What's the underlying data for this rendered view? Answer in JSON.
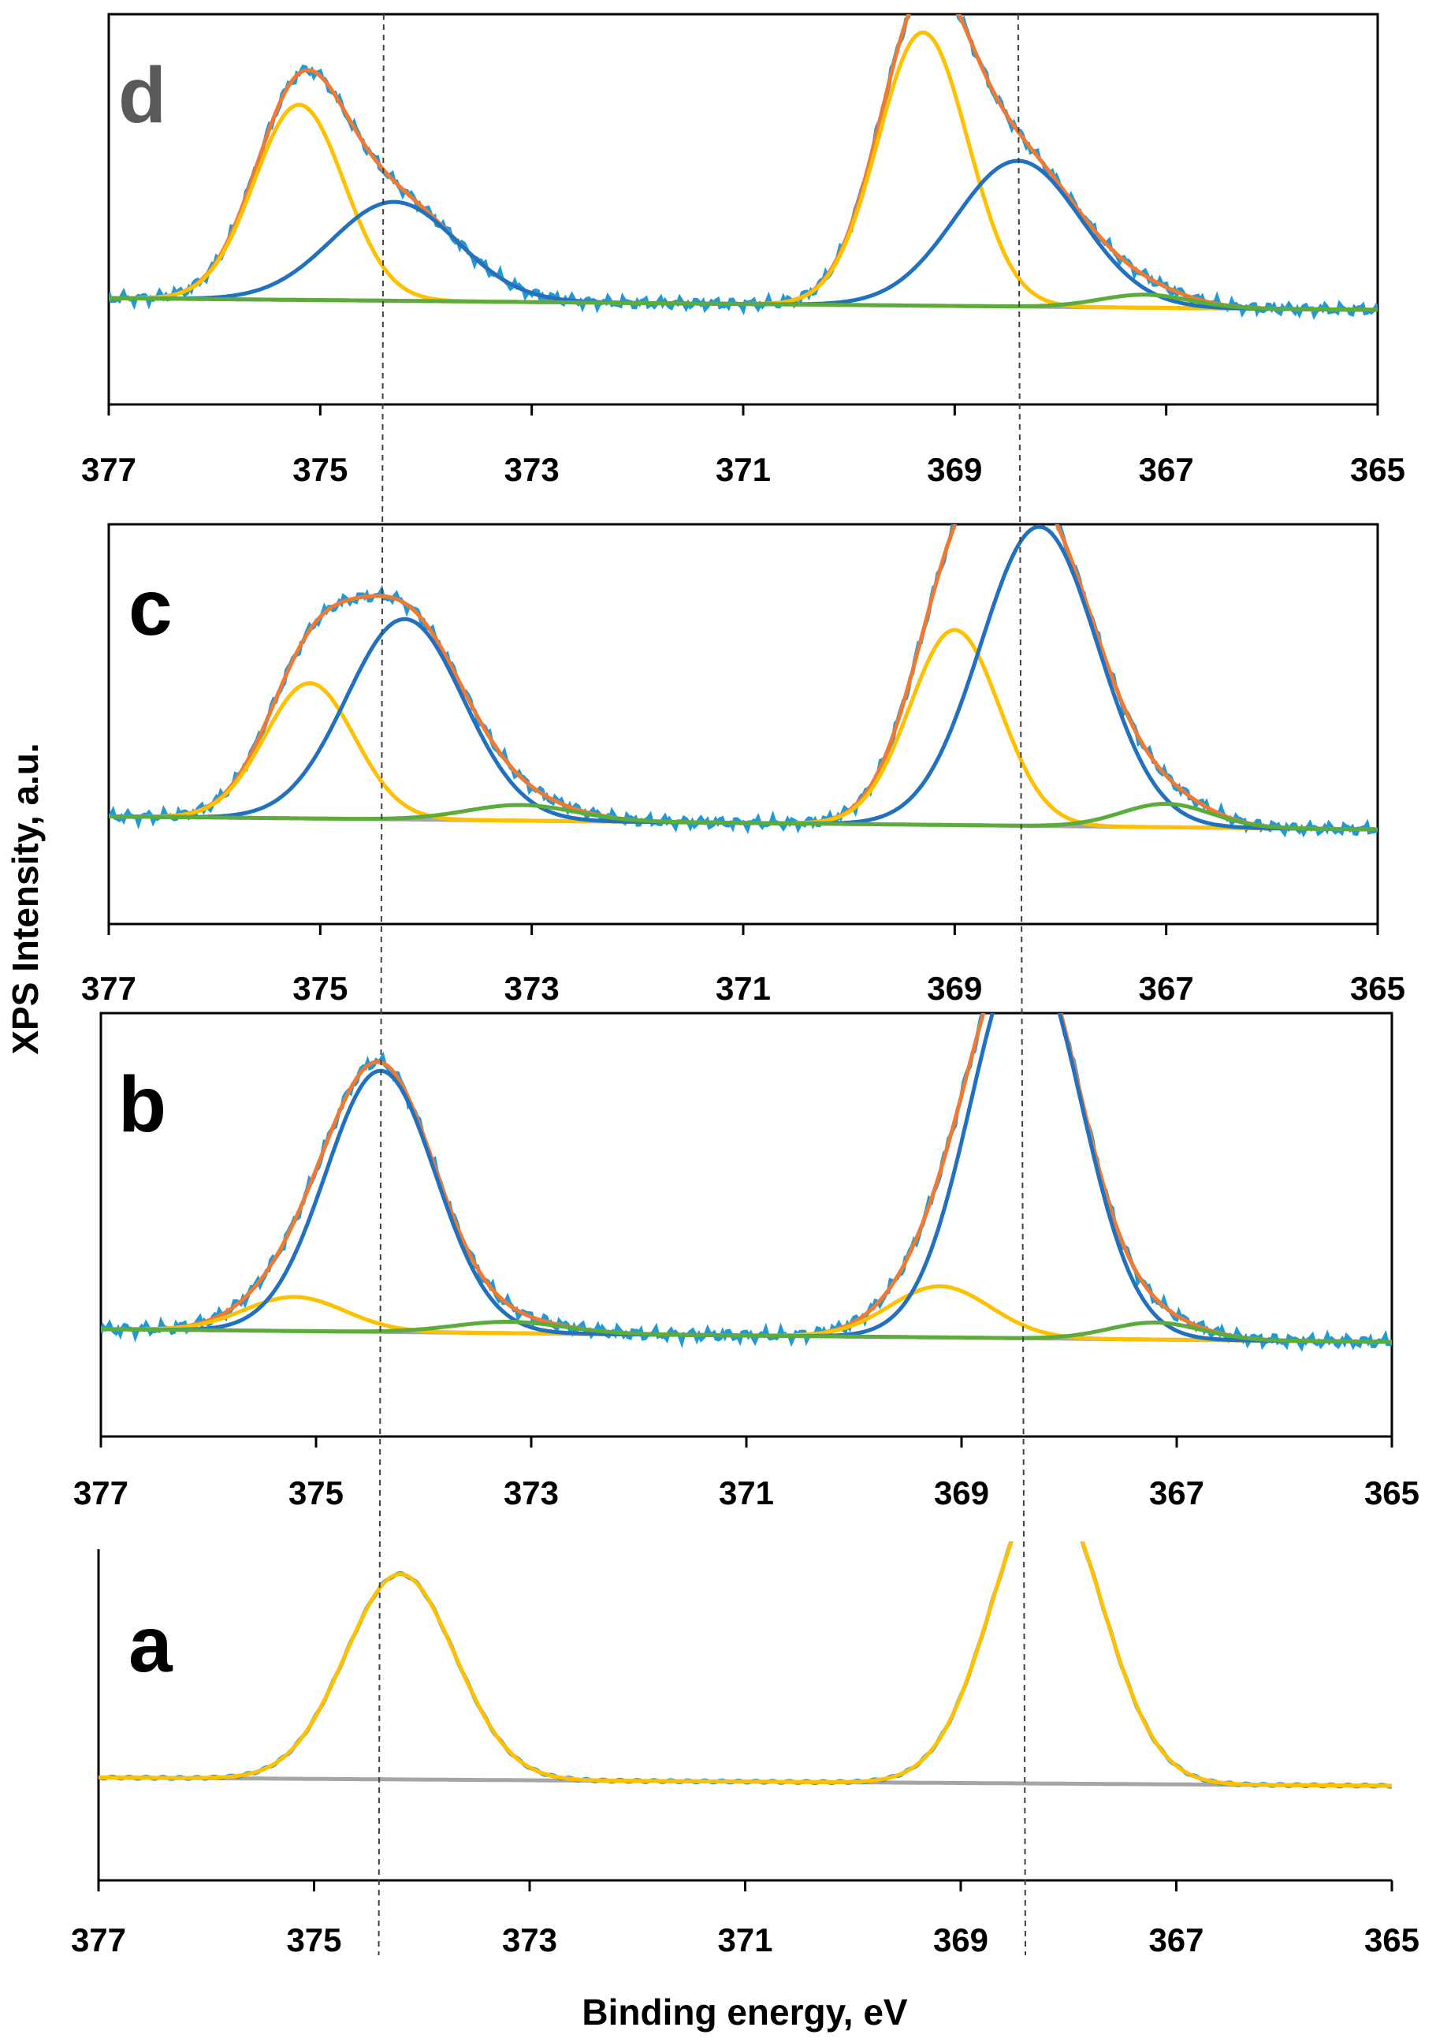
{
  "chart_data": {
    "type": "line",
    "ylabel": "XPS Intensity, a.u.",
    "xlabel": "Binding energy, eV",
    "xlim": [
      377,
      365
    ],
    "x_reversed": true,
    "x_ticks": [
      377,
      375,
      373,
      371,
      369,
      367,
      365
    ],
    "reference_lines_x": [
      374.4,
      368.4
    ],
    "colors": {
      "measured": "#1f9ad6",
      "envelope": "#ef7a34",
      "component_1": "#ffc000",
      "component_2": "#2171c0",
      "component_3": "#5cac3b",
      "background": "#a5a5a5",
      "reference_line": "#404040"
    },
    "panels": [
      {
        "label": "d",
        "label_color": "#5a5a5a",
        "background": {
          "left": 0.045,
          "right": 0.0
        },
        "components": [
          {
            "color_key": "component_1",
            "peaks": [
              {
                "center": 375.2,
                "height": 0.75,
                "fwhm": 1.0
              },
              {
                "center": 369.3,
                "height": 1.05,
                "fwhm": 1.0
              }
            ]
          },
          {
            "color_key": "component_2",
            "peaks": [
              {
                "center": 374.3,
                "height": 0.38,
                "fwhm": 1.4
              },
              {
                "center": 368.4,
                "height": 0.56,
                "fwhm": 1.4
              }
            ]
          },
          {
            "color_key": "component_3",
            "peaks": [
              {
                "center": 367.2,
                "height": 0.05,
                "fwhm": 1.0
              }
            ]
          }
        ]
      },
      {
        "label": "c",
        "label_color": "#000000",
        "background": {
          "left": 0.05,
          "right": 0.0
        },
        "components": [
          {
            "color_key": "component_1",
            "peaks": [
              {
                "center": 375.1,
                "height": 0.52,
                "fwhm": 1.0
              },
              {
                "center": 369.0,
                "height": 0.75,
                "fwhm": 1.0
              }
            ]
          },
          {
            "color_key": "component_2",
            "peaks": [
              {
                "center": 374.2,
                "height": 0.77,
                "fwhm": 1.3
              },
              {
                "center": 368.2,
                "height": 1.15,
                "fwhm": 1.3
              }
            ]
          },
          {
            "color_key": "component_3",
            "peaks": [
              {
                "center": 373.1,
                "height": 0.06,
                "fwhm": 1.2
              },
              {
                "center": 367.0,
                "height": 0.09,
                "fwhm": 1.0
              }
            ]
          }
        ]
      },
      {
        "label": "b",
        "label_color": "#000000",
        "background": {
          "left": 0.045,
          "right": 0.0
        },
        "components": [
          {
            "color_key": "component_1",
            "peaks": [
              {
                "center": 375.2,
                "height": 0.12,
                "fwhm": 1.1
              },
              {
                "center": 369.2,
                "height": 0.18,
                "fwhm": 1.1
              }
            ]
          },
          {
            "color_key": "component_2",
            "peaks": [
              {
                "center": 374.4,
                "height": 0.92,
                "fwhm": 1.2
              },
              {
                "center": 368.4,
                "height": 1.38,
                "fwhm": 1.2
              }
            ]
          },
          {
            "color_key": "component_3",
            "peaks": [
              {
                "center": 373.2,
                "height": 0.04,
                "fwhm": 1.2
              },
              {
                "center": 367.2,
                "height": 0.06,
                "fwhm": 1.0
              }
            ]
          }
        ]
      },
      {
        "label": "a",
        "label_color": "#000000",
        "background": {
          "left": 0.025,
          "right": 0.0
        },
        "components": [
          {
            "color_key": "component_1",
            "peaks": [
              {
                "center": 374.2,
                "height": 0.62,
                "fwhm": 1.2
              },
              {
                "center": 368.2,
                "height": 0.9,
                "fwhm": 1.2
              }
            ]
          }
        ]
      }
    ]
  }
}
